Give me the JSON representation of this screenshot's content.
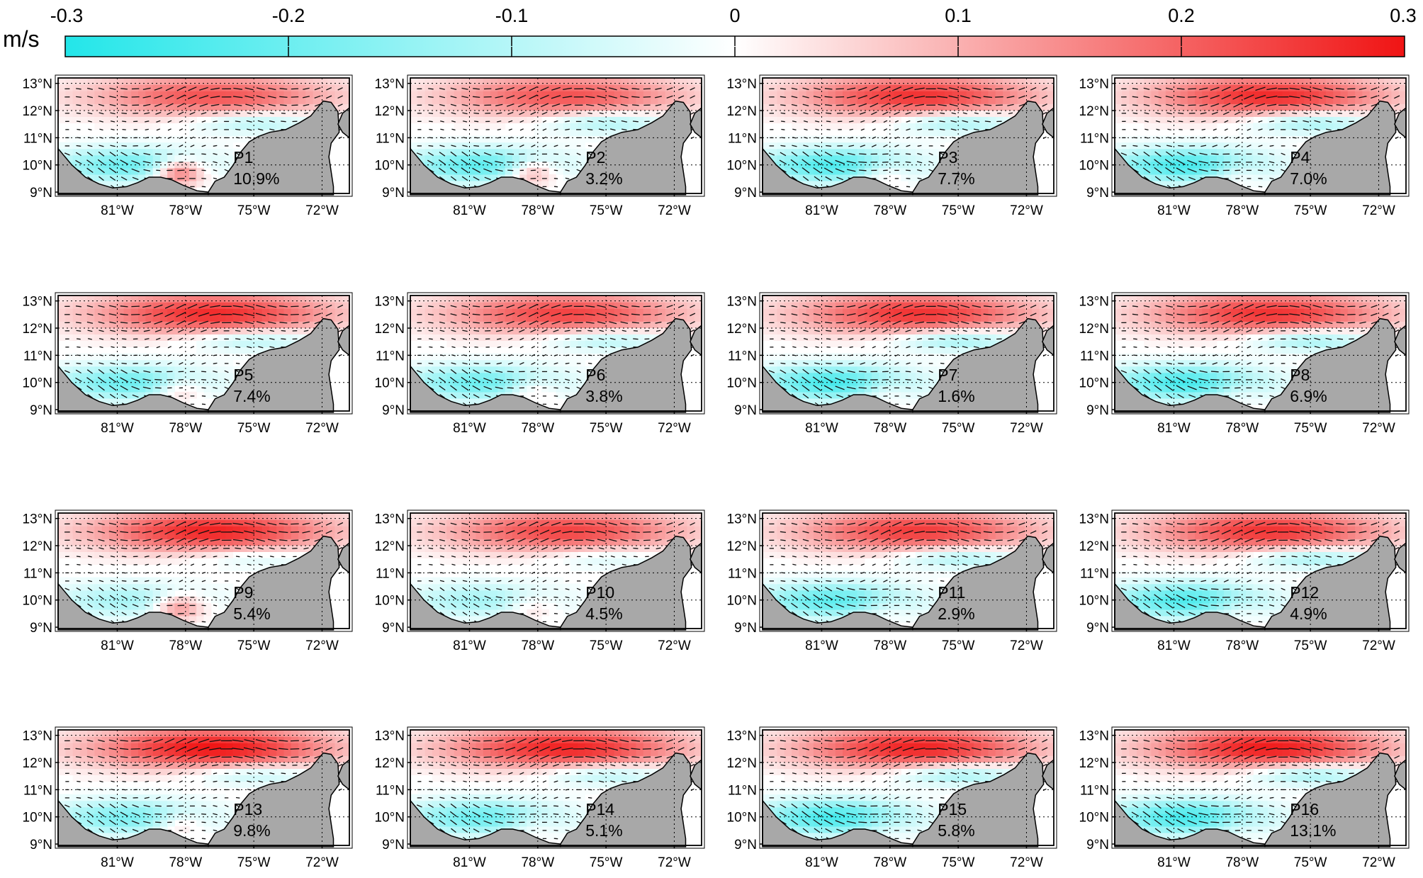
{
  "chart_data": {
    "type": "heatmap",
    "description_kind": "small-multiples vector maps of current velocity patterns",
    "colorbar": {
      "unit": "m/s",
      "range": [
        -0.3,
        0.3
      ],
      "tick_values": [
        -0.3,
        -0.2,
        -0.1,
        0,
        0.1,
        0.2,
        0.3
      ],
      "tick_labels": [
        "-0.3",
        "-0.2",
        "-0.1",
        "0",
        "0.1",
        "0.2",
        "0.3"
      ],
      "colors": {
        "negative": "#23e6e9",
        "zero": "#ffffff",
        "positive": "#f01414"
      }
    },
    "y_tick_labels": [
      "13°N",
      "12°N",
      "11°N",
      "10°N",
      "9°N"
    ],
    "y_tick_values": [
      13,
      12,
      11,
      10,
      9
    ],
    "x_tick_labels": [
      "81°W",
      "78°W",
      "75°W",
      "72°W"
    ],
    "x_tick_values": [
      -81,
      -78,
      -75,
      -72
    ],
    "lon_range": [
      -83.6,
      -70.8
    ],
    "lat_range": [
      8.95,
      13.2
    ],
    "land_color": "#a8a8a8",
    "patterns": [
      {
        "name": "P1",
        "percent": "10.9%",
        "north": 0.22,
        "south": -0.2,
        "southeast": 0.25
      },
      {
        "name": "P2",
        "percent": "3.2%",
        "north": 0.22,
        "south": -0.22,
        "southeast": 0.18
      },
      {
        "name": "P3",
        "percent": "7.7%",
        "north": 0.26,
        "south": -0.24,
        "southeast": 0.1
      },
      {
        "name": "P4",
        "percent": "7.0%",
        "north": 0.27,
        "south": -0.25,
        "southeast": 0.08
      },
      {
        "name": "P5",
        "percent": "7.4%",
        "north": 0.27,
        "south": -0.2,
        "southeast": 0.12
      },
      {
        "name": "P6",
        "percent": "3.8%",
        "north": 0.24,
        "south": -0.2,
        "southeast": 0.1
      },
      {
        "name": "P7",
        "percent": "1.6%",
        "north": 0.26,
        "south": -0.25,
        "southeast": 0.08
      },
      {
        "name": "P8",
        "percent": "6.9%",
        "north": 0.26,
        "south": -0.25,
        "southeast": 0.06
      },
      {
        "name": "P9",
        "percent": "5.4%",
        "north": 0.28,
        "south": -0.12,
        "southeast": 0.18
      },
      {
        "name": "P10",
        "percent": "4.5%",
        "north": 0.24,
        "south": -0.12,
        "southeast": 0.08
      },
      {
        "name": "P11",
        "percent": "2.9%",
        "north": 0.25,
        "south": -0.22,
        "southeast": 0.06
      },
      {
        "name": "P12",
        "percent": "4.9%",
        "north": 0.26,
        "south": -0.24,
        "southeast": 0.06
      },
      {
        "name": "P13",
        "percent": "9.8%",
        "north": 0.3,
        "south": -0.18,
        "southeast": 0.1
      },
      {
        "name": "P14",
        "percent": "5.1%",
        "north": 0.28,
        "south": -0.2,
        "southeast": 0.06
      },
      {
        "name": "P15",
        "percent": "5.8%",
        "north": 0.28,
        "south": -0.25,
        "southeast": 0.04
      },
      {
        "name": "P16",
        "percent": "13.1%",
        "north": 0.29,
        "south": -0.25,
        "southeast": 0.04
      }
    ]
  }
}
